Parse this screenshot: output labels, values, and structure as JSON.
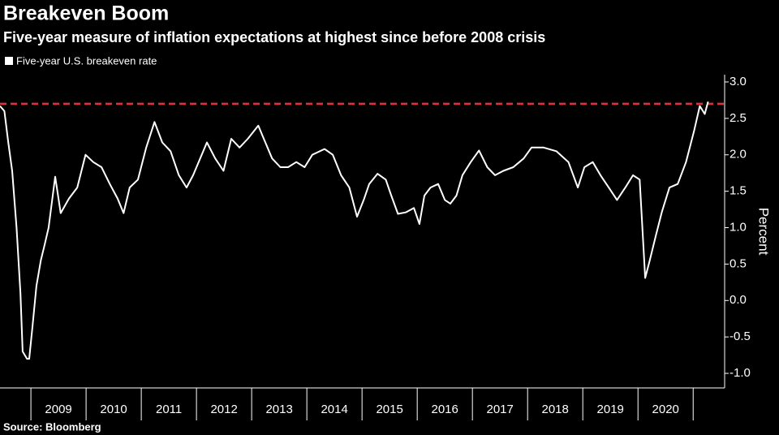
{
  "chart_data": {
    "type": "line",
    "title": "Breakeven Boom",
    "subtitle": "Five-year measure of inflation expectations at highest since before 2008 crisis",
    "source": "Source: Bloomberg",
    "y_axis_label": "Percent",
    "series": [
      {
        "name": "Five-year U.S. breakeven rate",
        "color": "#ffffff",
        "x": [
          2008.44,
          2008.52,
          2008.59,
          2008.66,
          2008.74,
          2008.81,
          2008.85,
          2008.93,
          2008.97,
          2009.03,
          2009.1,
          2009.18,
          2009.25,
          2009.32,
          2009.44,
          2009.54,
          2009.69,
          2009.84,
          2009.99,
          2010.13,
          2010.28,
          2010.43,
          2010.57,
          2010.68,
          2010.79,
          2010.94,
          2011.09,
          2011.24,
          2011.38,
          2011.53,
          2011.68,
          2011.82,
          2011.94,
          2012.04,
          2012.19,
          2012.34,
          2012.49,
          2012.63,
          2012.78,
          2012.93,
          2013.12,
          2013.22,
          2013.37,
          2013.52,
          2013.66,
          2013.81,
          2013.96,
          2014.1,
          2014.32,
          2014.47,
          2014.62,
          2014.77,
          2014.91,
          2015.03,
          2015.13,
          2015.28,
          2015.43,
          2015.53,
          2015.65,
          2015.79,
          2015.94,
          2016.04,
          2016.13,
          2016.24,
          2016.38,
          2016.5,
          2016.6,
          2016.71,
          2016.82,
          2016.97,
          2017.12,
          2017.27,
          2017.41,
          2017.56,
          2017.74,
          2017.93,
          2018.07,
          2018.29,
          2018.52,
          2018.74,
          2018.91,
          2019.03,
          2019.18,
          2019.32,
          2019.47,
          2019.62,
          2019.77,
          2019.91,
          2020.03,
          2020.13,
          2020.21,
          2020.32,
          2020.43,
          2020.57,
          2020.72,
          2020.87,
          2021.02,
          2021.12,
          2021.21,
          2021.27
        ],
        "values": [
          2.67,
          2.6,
          2.17,
          1.78,
          1.0,
          0.1,
          -0.7,
          -0.8,
          -0.8,
          -0.35,
          0.2,
          0.55,
          0.77,
          1.0,
          1.7,
          1.2,
          1.4,
          1.55,
          2.0,
          1.9,
          1.83,
          1.6,
          1.4,
          1.2,
          1.55,
          1.66,
          2.1,
          2.45,
          2.17,
          2.05,
          1.72,
          1.55,
          1.72,
          1.9,
          2.17,
          1.95,
          1.78,
          2.22,
          2.1,
          2.22,
          2.4,
          2.22,
          1.95,
          1.83,
          1.83,
          1.9,
          1.83,
          2.0,
          2.08,
          2.0,
          1.72,
          1.55,
          1.15,
          1.38,
          1.6,
          1.74,
          1.66,
          1.44,
          1.19,
          1.21,
          1.27,
          1.05,
          1.44,
          1.55,
          1.6,
          1.38,
          1.33,
          1.44,
          1.72,
          1.9,
          2.06,
          1.83,
          1.72,
          1.78,
          1.83,
          1.95,
          2.1,
          2.1,
          2.05,
          1.9,
          1.55,
          1.83,
          1.9,
          1.72,
          1.55,
          1.38,
          1.55,
          1.72,
          1.66,
          0.31,
          0.54,
          0.88,
          1.21,
          1.55,
          1.6,
          1.9,
          2.34,
          2.67,
          2.56,
          2.73
        ]
      }
    ],
    "reference_line": {
      "value": 2.7,
      "color": "#e0303c"
    },
    "xlim": [
      2008.44,
      2021.57
    ],
    "x_separators": [
      2009,
      2010,
      2011,
      2012,
      2013,
      2014,
      2015,
      2016,
      2017,
      2018,
      2019,
      2020,
      2021
    ],
    "xticks": [
      {
        "value": 2009.5,
        "label": "2009"
      },
      {
        "value": 2010.5,
        "label": "2010"
      },
      {
        "value": 2011.5,
        "label": "2011"
      },
      {
        "value": 2012.5,
        "label": "2012"
      },
      {
        "value": 2013.5,
        "label": "2013"
      },
      {
        "value": 2014.5,
        "label": "2014"
      },
      {
        "value": 2015.5,
        "label": "2015"
      },
      {
        "value": 2016.5,
        "label": "2016"
      },
      {
        "value": 2017.5,
        "label": "2017"
      },
      {
        "value": 2018.5,
        "label": "2018"
      },
      {
        "value": 2019.5,
        "label": "2019"
      },
      {
        "value": 2020.5,
        "label": "2020"
      }
    ],
    "ylim": [
      -1.2,
      3.1
    ],
    "yticks": [
      {
        "value": 3,
        "label": "3.0"
      },
      2.5,
      {
        "value": 2,
        "label": "2.0"
      },
      1.5,
      {
        "value": 1,
        "label": "1.0"
      },
      0.5,
      {
        "value": 0,
        "label": "0.0"
      },
      -0.5,
      {
        "value": -1,
        "label": "-1.0"
      }
    ]
  }
}
